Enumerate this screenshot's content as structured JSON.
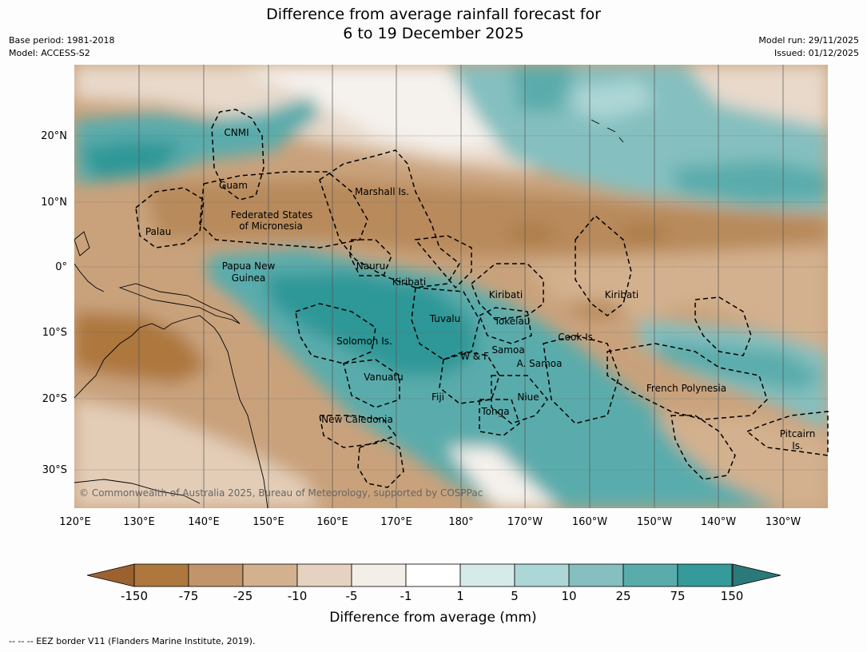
{
  "header": {
    "title_line1": "Difference from average rainfall forecast for",
    "title_line2": "6 to 19 December 2025",
    "base_period": "Base period: 1981-2018",
    "model": "Model: ACCESS-S2",
    "model_run": "Model run: 29/11/2025",
    "issued": "Issued: 01/12/2025"
  },
  "map": {
    "lat_labels": [
      "20°N",
      "10°N",
      "0°",
      "10°S",
      "20°S",
      "30°S"
    ],
    "lon_labels": [
      "120°E",
      "130°E",
      "140°E",
      "150°E",
      "160°E",
      "170°E",
      "180°",
      "170°W",
      "160°W",
      "150°W",
      "140°W",
      "130°W"
    ],
    "regions": [
      "CNMI",
      "Guam",
      "Marshall Is.",
      "Federated States",
      "of Micronesia",
      "Palau",
      "Papua New",
      "Guinea",
      "Nauru",
      "Kiribati",
      "Kiribati",
      "Kiribati",
      "Tuvalu",
      "Tokelau",
      "Cook Is.",
      "Solomon Is.",
      "W & F",
      "Samoa",
      "A. Samoa",
      "Vanuatu",
      "Fiji",
      "Niue",
      "Tonga",
      "French Polynesia",
      "New Caledonia",
      "Pitcairn",
      "Is."
    ],
    "copyright": "© Commonwealth of Australia 2025, Bureau of Meteorology, supported by COSPPac"
  },
  "colorbar": {
    "colors": [
      "#9b6230",
      "#ad773d",
      "#c0956a",
      "#d3b18e",
      "#e5d2c0",
      "#f3eee8",
      "#ffffff",
      "#d6eae9",
      "#add6d6",
      "#85bfbf",
      "#5aacac",
      "#349a9a",
      "#2b7a79"
    ],
    "labels": [
      "-150",
      "-75",
      "-25",
      "-10",
      "-5",
      "-1",
      "1",
      "5",
      "10",
      "25",
      "75",
      "150"
    ],
    "title": "Difference from average (mm)"
  },
  "footnote": "--  --  -- EEZ border V11 (Flanders Marine Institute, 2019)."
}
